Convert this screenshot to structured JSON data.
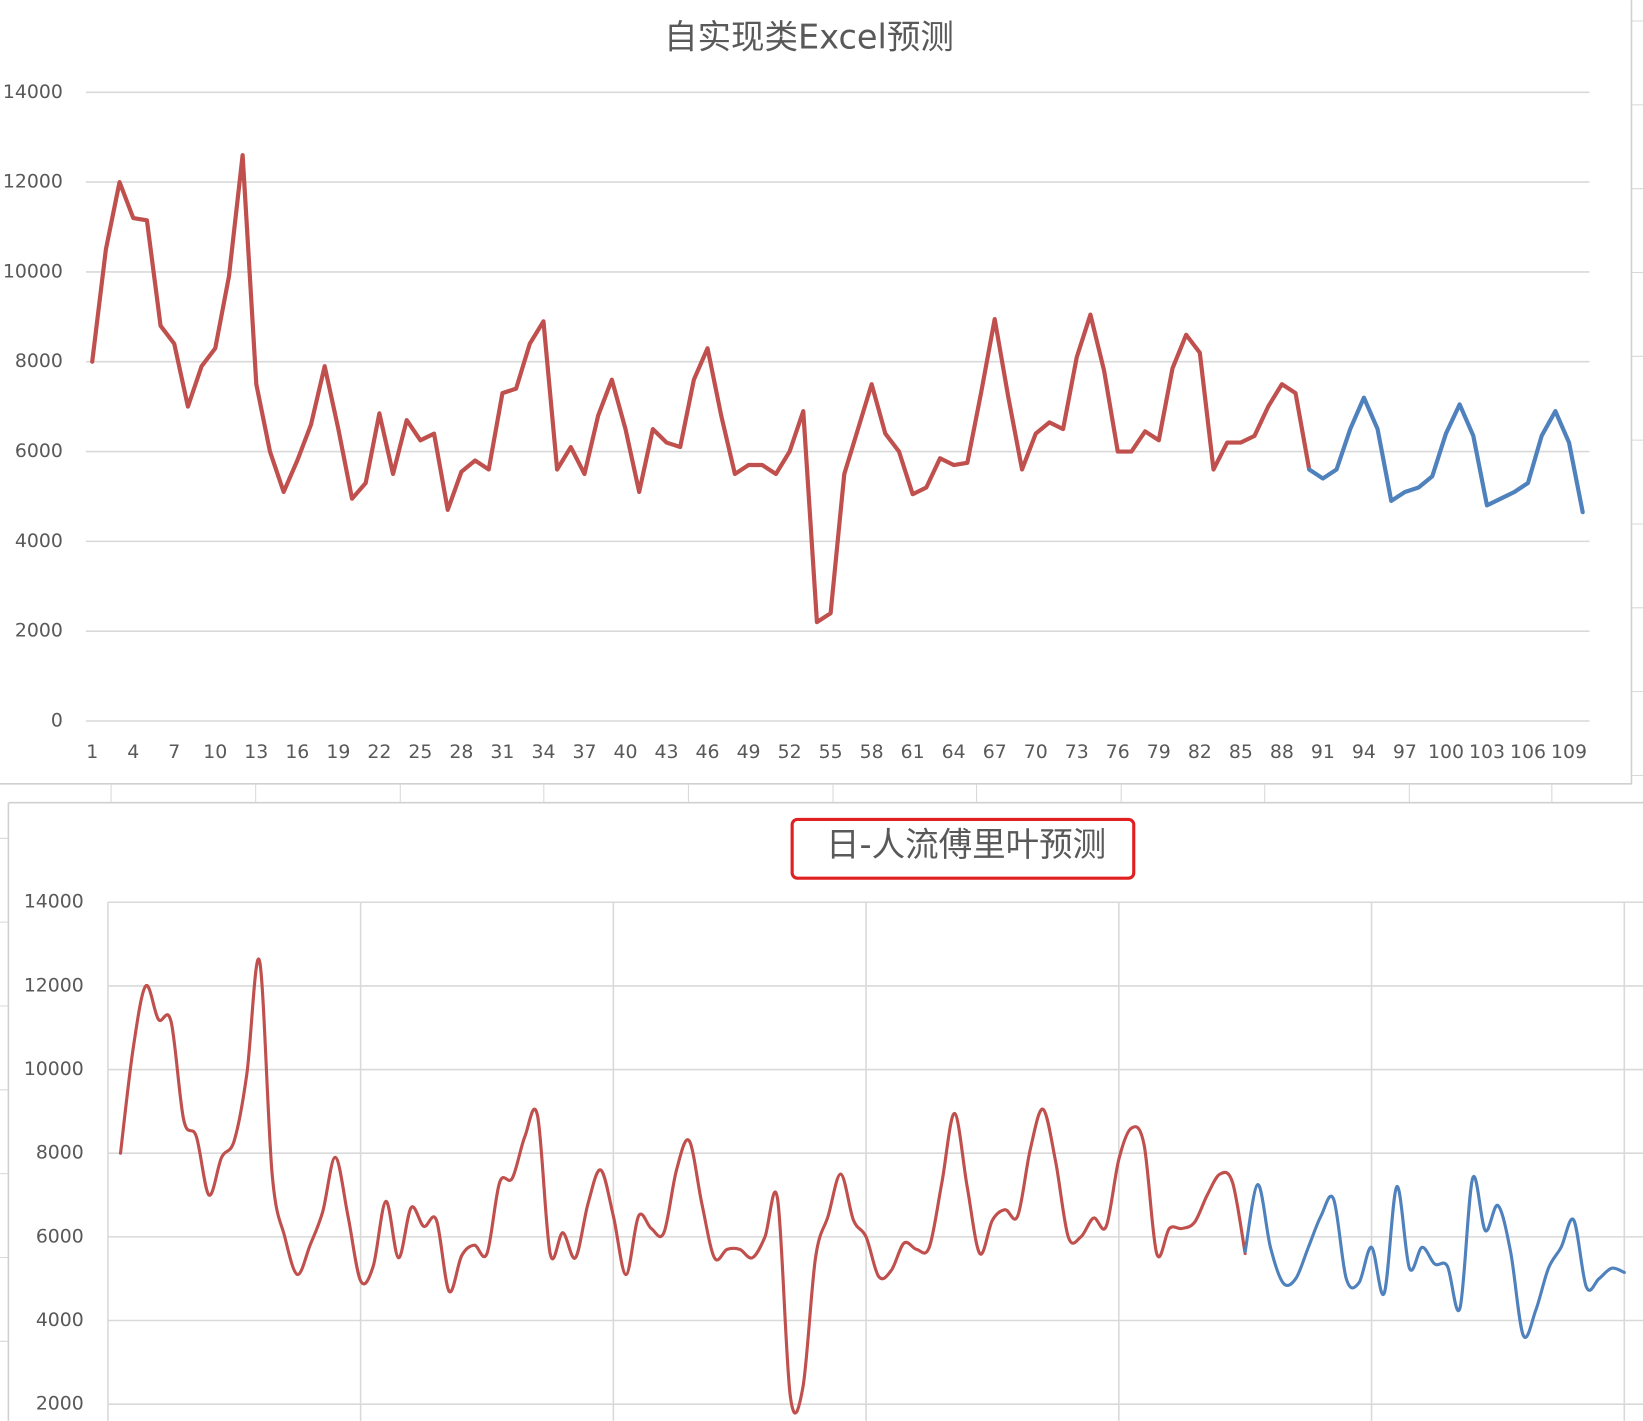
{
  "chart_data": [
    {
      "type": "line",
      "title": "自实现类Excel预测",
      "categories": [
        1,
        null,
        null,
        4,
        null,
        null,
        7,
        null,
        null,
        10,
        null,
        null,
        13,
        null,
        null,
        16,
        null,
        null,
        19,
        null,
        null,
        22,
        null,
        null,
        25,
        null,
        null,
        28,
        null,
        null,
        31,
        null,
        null,
        34,
        null,
        null,
        37,
        null,
        null,
        40,
        null,
        null,
        43,
        null,
        null,
        46,
        null,
        null,
        49,
        null,
        null,
        52,
        null,
        null,
        55,
        null,
        null,
        58,
        null,
        null,
        61,
        null,
        null,
        64,
        null,
        null,
        67,
        null,
        null,
        70,
        null,
        null,
        73,
        null,
        null,
        76,
        null,
        null,
        79,
        null,
        null,
        82,
        null,
        null,
        85,
        null,
        null,
        88,
        null,
        null,
        91,
        null,
        null,
        94,
        null,
        null,
        97,
        null,
        null,
        100,
        null,
        null,
        103,
        null,
        null,
        106,
        null,
        null,
        109,
        null
      ],
      "ylim": [
        0,
        14000
      ],
      "yticks": [
        0,
        2000,
        4000,
        6000,
        8000,
        10000,
        12000,
        14000
      ],
      "grid": true,
      "smooth": false,
      "series": [
        {
          "color": "#c0504d",
          "values": [
            8000,
            10500,
            12000,
            11200,
            11150,
            8800,
            8400,
            7000,
            7900,
            8300,
            9900,
            12600,
            7500,
            6000,
            5100,
            5800,
            6600,
            7900,
            6500,
            4950,
            5300,
            6850,
            5500,
            6700,
            6250,
            6400,
            4700,
            5550,
            5800,
            5600,
            7300,
            7400,
            8400,
            8900,
            5600,
            6100,
            5500,
            6800,
            7600,
            6500,
            5100,
            6500,
            6200,
            6100,
            7600,
            8300,
            6800,
            5500,
            5700,
            5700,
            5500,
            6000,
            6900,
            2200,
            2400,
            5500,
            6500,
            7500,
            6400,
            6000,
            5050,
            5200,
            5850,
            5700,
            5750,
            7300,
            8950,
            7200,
            5600,
            6400,
            6650,
            6500,
            8100,
            9050,
            7800,
            6000,
            6000,
            6450,
            6250,
            7850,
            8600,
            8200,
            5600,
            6200,
            6200,
            6350,
            7000,
            7500,
            7300,
            5600,
            null,
            null,
            null,
            null,
            null,
            null,
            null,
            null,
            null,
            null,
            null,
            null,
            null,
            null,
            null,
            null,
            null,
            null,
            null,
            null
          ]
        },
        {
          "color": "#4f81bd",
          "values": [
            null,
            null,
            null,
            null,
            null,
            null,
            null,
            null,
            null,
            null,
            null,
            null,
            null,
            null,
            null,
            null,
            null,
            null,
            null,
            null,
            null,
            null,
            null,
            null,
            null,
            null,
            null,
            null,
            null,
            null,
            null,
            null,
            null,
            null,
            null,
            null,
            null,
            null,
            null,
            null,
            null,
            null,
            null,
            null,
            null,
            null,
            null,
            null,
            null,
            null,
            null,
            null,
            null,
            null,
            null,
            null,
            null,
            null,
            null,
            null,
            null,
            null,
            null,
            null,
            null,
            null,
            null,
            null,
            null,
            null,
            null,
            null,
            null,
            null,
            null,
            null,
            null,
            null,
            null,
            null,
            null,
            null,
            null,
            null,
            null,
            null,
            null,
            null,
            null,
            5600,
            5400,
            5600,
            6500,
            7200,
            6500,
            4900,
            5100,
            5200,
            5450,
            6400,
            7050,
            6350,
            4800,
            4950,
            5100,
            5300,
            6350,
            6900,
            6200,
            4650
          ]
        }
      ]
    },
    {
      "type": "line",
      "title": "日-人流傅里叶预测",
      "ylim": [
        2000,
        14000
      ],
      "yticks": [
        2000,
        4000,
        6000,
        8000,
        10000,
        12000,
        14000
      ],
      "grid": true,
      "smooth": true,
      "series": [
        {
          "color": "#c0504d",
          "values": [
            8000,
            10500,
            12000,
            11200,
            11150,
            8800,
            8400,
            7000,
            7900,
            8300,
            9900,
            12600,
            7500,
            6000,
            5100,
            5800,
            6600,
            7900,
            6500,
            4950,
            5300,
            6850,
            5500,
            6700,
            6250,
            6400,
            4700,
            5550,
            5800,
            5600,
            7300,
            7400,
            8400,
            8900,
            5600,
            6100,
            5500,
            6800,
            7600,
            6500,
            5100,
            6500,
            6200,
            6100,
            7600,
            8300,
            6800,
            5500,
            5700,
            5700,
            5500,
            6000,
            6900,
            2200,
            2400,
            5500,
            6500,
            7500,
            6400,
            6000,
            5050,
            5200,
            5850,
            5700,
            5750,
            7300,
            8950,
            7200,
            5600,
            6400,
            6650,
            6500,
            8100,
            9050,
            7800,
            6000,
            6000,
            6450,
            6250,
            7850,
            8600,
            8200,
            5600,
            6200,
            6200,
            6350,
            7000,
            7500,
            7300,
            5600,
            null,
            null,
            null,
            null,
            null,
            null,
            null,
            null,
            null,
            null,
            null,
            null,
            null,
            null,
            null,
            null,
            null,
            null,
            null,
            null,
            null,
            null,
            null,
            null,
            null,
            null,
            null,
            null,
            null,
            null
          ]
        },
        {
          "color": "#4f81bd",
          "values": [
            null,
            null,
            null,
            null,
            null,
            null,
            null,
            null,
            null,
            null,
            null,
            null,
            null,
            null,
            null,
            null,
            null,
            null,
            null,
            null,
            null,
            null,
            null,
            null,
            null,
            null,
            null,
            null,
            null,
            null,
            null,
            null,
            null,
            null,
            null,
            null,
            null,
            null,
            null,
            null,
            null,
            null,
            null,
            null,
            null,
            null,
            null,
            null,
            null,
            null,
            null,
            null,
            null,
            null,
            null,
            null,
            null,
            null,
            null,
            null,
            null,
            null,
            null,
            null,
            null,
            null,
            null,
            null,
            null,
            null,
            null,
            null,
            null,
            null,
            null,
            null,
            null,
            null,
            null,
            null,
            null,
            null,
            null,
            null,
            null,
            null,
            null,
            null,
            null,
            5650,
            7250,
            5750,
            4900,
            5000,
            5750,
            6500,
            6900,
            5000,
            4900,
            5750,
            4650,
            7200,
            5250,
            5750,
            5350,
            5300,
            4300,
            7400,
            6150,
            6750,
            5650,
            3650,
            4250,
            5250,
            5750,
            6400,
            4800,
            5000,
            5250,
            5150
          ]
        }
      ]
    }
  ]
}
